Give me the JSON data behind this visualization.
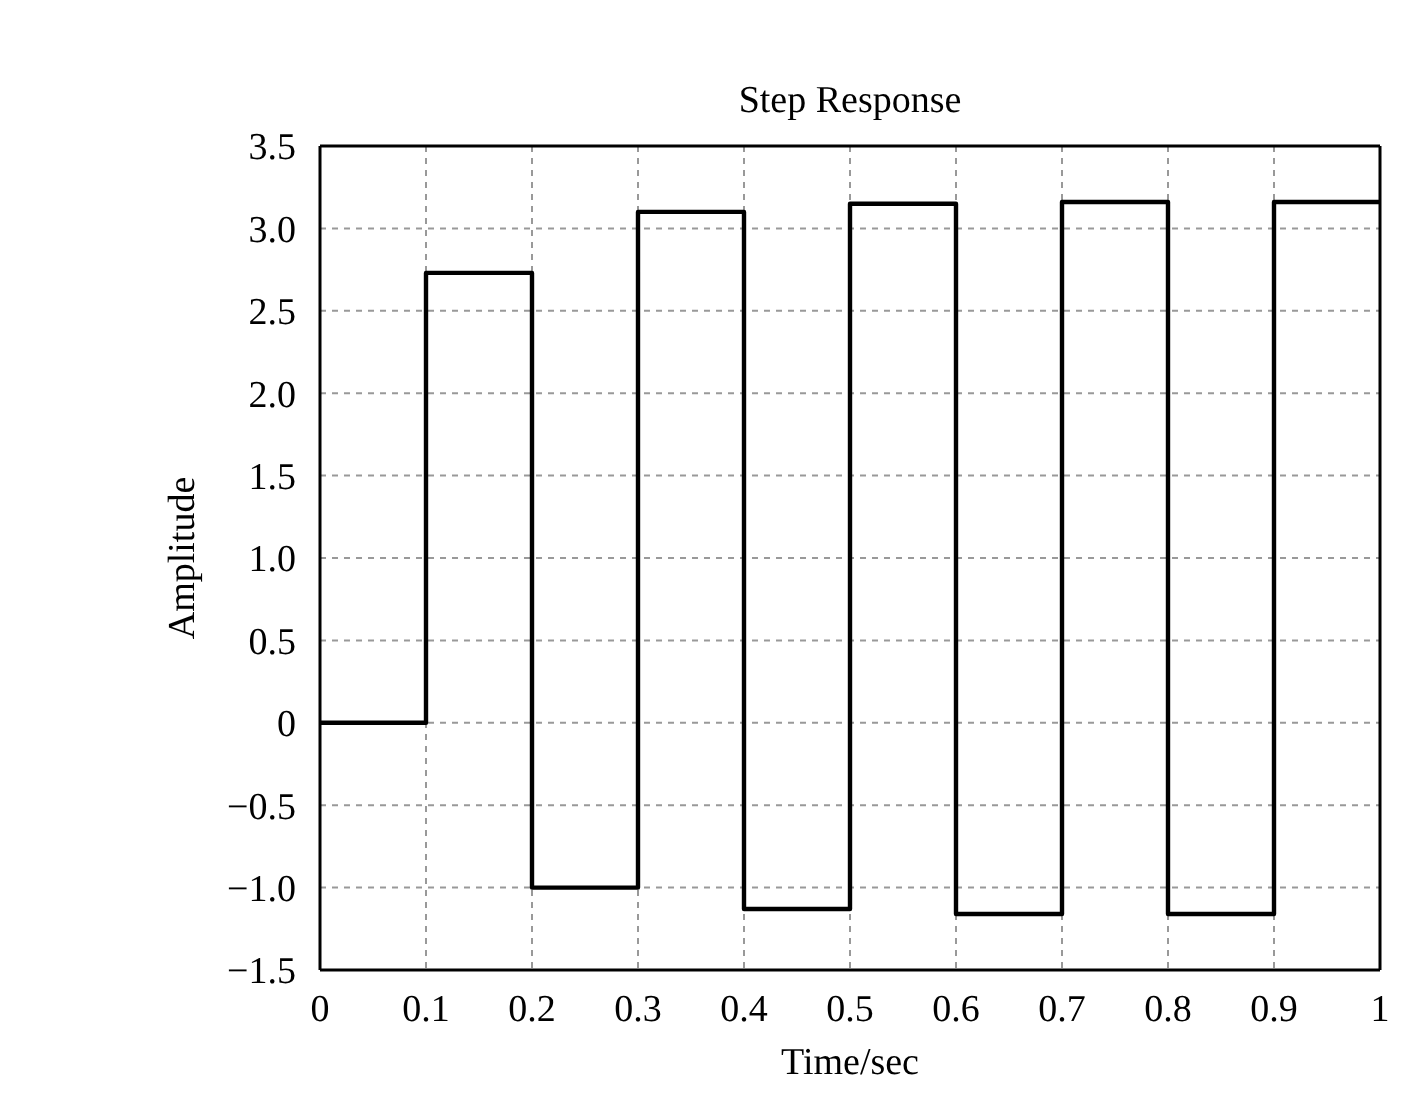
{
  "chart_data": {
    "type": "step",
    "title": "Step Response",
    "xlabel": "Time/sec",
    "ylabel": "Amplitude",
    "x": [
      0,
      0.1,
      0.2,
      0.3,
      0.4,
      0.5,
      0.6,
      0.7,
      0.8,
      0.9,
      1
    ],
    "values": [
      0,
      2.73,
      -1.0,
      3.1,
      -1.13,
      3.15,
      -1.16,
      3.16,
      -1.16,
      3.16,
      3.16
    ],
    "color": "#000000",
    "xlim": [
      0,
      1
    ],
    "xticks": [
      0,
      0.1,
      0.2,
      0.3,
      0.4,
      0.5,
      0.6,
      0.7,
      0.8,
      0.9,
      1
    ],
    "ylim": [
      -1.5,
      3.5
    ],
    "yticks": [
      {
        "value": -1.5,
        "label": "−1.5"
      },
      {
        "value": -1,
        "label": "−1.0"
      },
      {
        "value": -0.5,
        "label": "−0.5"
      },
      0,
      {
        "value": 0.5,
        "label": "0.5"
      },
      {
        "value": 1,
        "label": "1.0"
      },
      {
        "value": 1.5,
        "label": "1.5"
      },
      {
        "value": 2,
        "label": "2.0"
      },
      {
        "value": 2.5,
        "label": "2.5"
      },
      {
        "value": 3,
        "label": "3.0"
      },
      {
        "value": 3.5,
        "label": "3.5"
      }
    ],
    "grid": true
  }
}
